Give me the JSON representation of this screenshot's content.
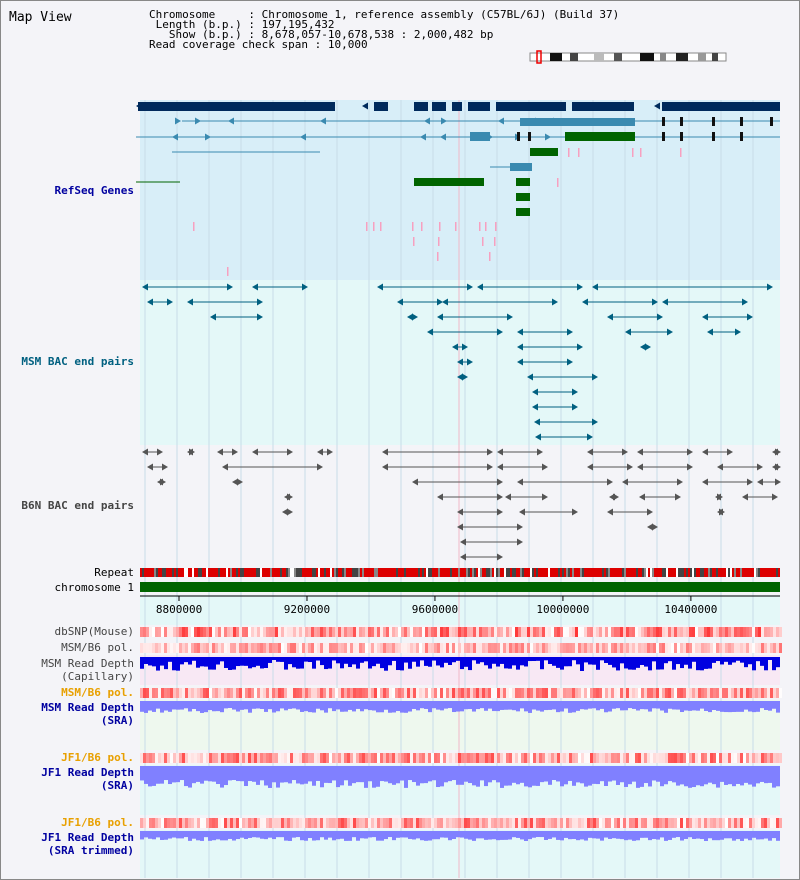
{
  "view_title": "Map View",
  "info": {
    "chromosome_label": "Chromosome",
    "chromosome_value": "Chromosome 1, reference assembly (C57BL/6J) (Build 37)",
    "length_label": "Length (b.p.)",
    "length_value": "197,195,432",
    "show_label": "Show (b.p.)",
    "show_value": "8,678,057-10,678,538 : 2,000,482 bp",
    "coverage_label": "Read coverage check span",
    "coverage_value": "10,000"
  },
  "tracks": {
    "refseq": "RefSeq Genes",
    "msm_bac": "MSM BAC end pairs",
    "b6n_bac": "B6N BAC end pairs",
    "repeat": "Repeat",
    "chromosome": "chromosome 1",
    "dbsnp": "dbSNP(Mouse)",
    "msm_b6_pol_1": "MSM/B6 pol.",
    "msm_read_depth_cap_1": "MSM Read Depth",
    "msm_read_depth_cap_2": "(Capillary)",
    "msm_b6_pol_2": "MSM/B6 pol.",
    "msm_read_depth_sra_1": "MSM Read Depth",
    "msm_read_depth_sra_2": "(SRA)",
    "jf1_b6_pol_1": "JF1/B6 pol.",
    "jf1_read_depth_sra_1": "JF1 Read Depth",
    "jf1_read_depth_sra_2": "(SRA)",
    "jf1_b6_pol_2": "JF1/B6 pol.",
    "jf1_read_depth_trim_1": "JF1 Read Depth",
    "jf1_read_depth_trim_2": "(SRA trimmed)"
  },
  "axis": {
    "ticks": [
      "8800000",
      "9200000",
      "9600000",
      "10000000",
      "10400000"
    ],
    "tick_values": [
      8800000,
      9200000,
      9600000,
      10000000,
      10400000
    ],
    "start": 8678057,
    "end": 10678538
  },
  "colors": {
    "refseq_dark": "#002a5c",
    "refseq_mid": "#3a8ab0",
    "refseq_green": "#006400",
    "msm_line": "#006080",
    "b6n_line": "#555555",
    "pol": "#ff4040",
    "read_depth_cap": "#0000e0",
    "read_depth_sra": "#8080ff"
  }
}
